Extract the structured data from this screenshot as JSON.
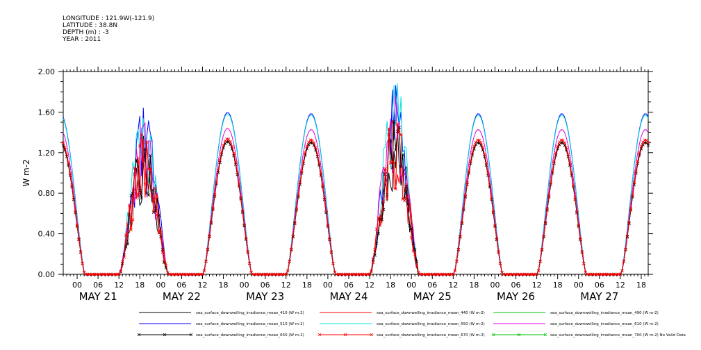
{
  "header": {
    "longitude": "LONGITUDE : 121.9W(-121.9)",
    "latitude": "LATITUDE : 38.8N",
    "depth": "DEPTH (m) : -3",
    "year": "YEAR : 2011"
  },
  "chart_data": {
    "type": "line",
    "title": "",
    "xlabel": "",
    "ylabel": "W m-2",
    "ylim": [
      0,
      2
    ],
    "yticks": [
      "0.00",
      "0.40",
      "0.80",
      "1.20",
      "1.60",
      "2.00"
    ],
    "xlim_hours": [
      -4,
      164
    ],
    "hour_ticks": [
      "00",
      "06",
      "12",
      "18"
    ],
    "days": [
      "MAY 21",
      "MAY 22",
      "MAY 23",
      "MAY 24",
      "MAY 25",
      "MAY 26",
      "MAY 27"
    ],
    "day_peaks": [
      {
        "day": "MAY 21",
        "peak_410": 1.3,
        "peak_510": 1.59,
        "peak_550": 1.57,
        "peak_610": 1.44,
        "peak_670": 1.33,
        "cloudy": false
      },
      {
        "day": "MAY 22",
        "peak_410": 1.25,
        "peak_510": 1.55,
        "peak_550": 1.66,
        "peak_610": 1.45,
        "peak_670": 1.4,
        "cloudy": true
      },
      {
        "day": "MAY 23",
        "peak_410": 1.31,
        "peak_510": 1.6,
        "peak_550": 1.61,
        "peak_610": 1.45,
        "peak_670": 1.34,
        "cloudy": false
      },
      {
        "day": "MAY 24",
        "peak_410": 1.3,
        "peak_510": 1.59,
        "peak_550": 1.57,
        "peak_610": 1.44,
        "peak_670": 1.33,
        "cloudy": false
      },
      {
        "day": "MAY 25",
        "peak_410": 1.5,
        "peak_510": 1.65,
        "peak_550": 1.82,
        "peak_610": 1.6,
        "peak_670": 1.55,
        "cloudy": true
      },
      {
        "day": "MAY 26",
        "peak_410": 1.3,
        "peak_510": 1.59,
        "peak_550": 1.57,
        "peak_610": 1.44,
        "peak_670": 1.33,
        "cloudy": false
      },
      {
        "day": "MAY 27",
        "peak_410": 1.3,
        "peak_510": 1.61,
        "peak_550": 1.6,
        "peak_610": 1.46,
        "peak_670": 1.34,
        "cloudy": false
      }
    ],
    "series": [
      {
        "name": "sea_surface_downwelling_irradiance_mean_410 (W m-2)",
        "color": "#000000",
        "marker": "none",
        "scale": 1.0
      },
      {
        "name": "sea_surface_downwelling_irradiance_mean_440 (W m-2)",
        "color": "#ff0000",
        "marker": "none",
        "scale": 1.02
      },
      {
        "name": "sea_surface_downwelling_irradiance_mean_490 (W m-2)",
        "color": "#00c000",
        "marker": "none",
        "scale": 1.0
      },
      {
        "name": "sea_surface_downwelling_irradiance_mean_510 (W m-2)",
        "color": "#0000ff",
        "marker": "none",
        "scale": 1.22
      },
      {
        "name": "sea_surface_downwelling_irradiance_mean_550 (W m-2)",
        "color": "#00e0e0",
        "marker": "none",
        "scale": 1.21
      },
      {
        "name": "sea_surface_downwelling_irradiance_mean_610 (W m-2)",
        "color": "#e000e0",
        "marker": "none",
        "scale": 1.11
      },
      {
        "name": "sea_surface_downwelling_irradiance_mean_650 (W m-2)",
        "color": "#000000",
        "marker": "x",
        "scale": 1.0
      },
      {
        "name": "sea_surface_downwelling_irradiance_mean_670 (W m-2)",
        "color": "#ff0000",
        "marker": "x",
        "scale": 1.02
      },
      {
        "name": "sea_surface_downwelling_irradiance_mean_700 (W m-2) No Valid Data",
        "color": "#00c000",
        "marker": "x",
        "scale": 0
      }
    ],
    "grid": false,
    "legend_position": "bottom"
  }
}
